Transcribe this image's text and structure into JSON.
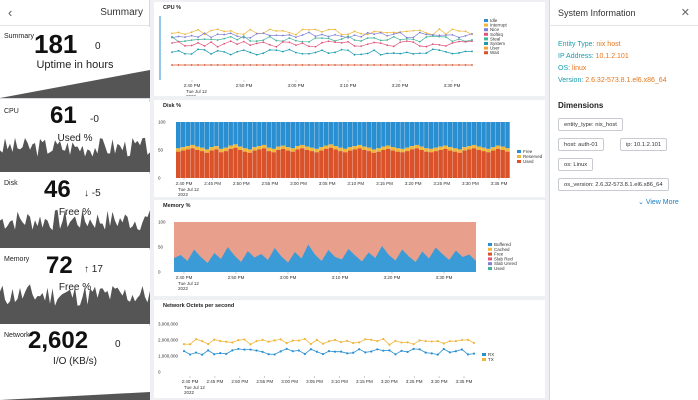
{
  "left": {
    "title": "Summary",
    "back_icon": "chevron-left-icon",
    "metrics": {
      "summary": {
        "label": "Summary",
        "value": "181",
        "delta": "0",
        "sub": "Uptime in hours"
      },
      "cpu": {
        "label": "CPU",
        "value": "61",
        "delta": "-0",
        "sub": "Used %"
      },
      "disk": {
        "label": "Disk",
        "value": "46",
        "delta": "↓ -5",
        "sub": "Free %"
      },
      "memory": {
        "label": "Memory",
        "value": "72",
        "delta": "↑ 17",
        "sub": "Free %"
      },
      "network": {
        "label": "Network",
        "value": "2,602",
        "delta": "0",
        "sub": "I/O (KB/s)"
      }
    }
  },
  "center": {
    "x_tick_labels": [
      "2:40 PM",
      "2:45 PM",
      "2:50 PM",
      "2:55 PM",
      "3:00 PM",
      "3:05 PM",
      "3:10 PM",
      "3:15 PM",
      "3:20 PM",
      "3:25 PM",
      "3:30 PM",
      "3:35 PM"
    ],
    "x_date_line1": "Tue Jul 12",
    "x_date_line2": "2022"
  },
  "chart_data": [
    {
      "type": "line",
      "title": "CPU %",
      "x_labels": [
        "2:40 PM",
        "2:50 PM",
        "3:00 PM",
        "3:10 PM",
        "3:20 PM",
        "3:30 PM"
      ],
      "series": [
        {
          "name": "Idle",
          "color": "#2a8fd1"
        },
        {
          "name": "Interrupt",
          "color": "#f0b63c"
        },
        {
          "name": "Nice",
          "color": "#7f7fd5"
        },
        {
          "name": "Softirq",
          "color": "#e0557a"
        },
        {
          "name": "Steal",
          "color": "#43b39b"
        },
        {
          "name": "System",
          "color": "#1a9cb0"
        },
        {
          "name": "User",
          "color": "#f7a23b"
        },
        {
          "name": "Wait",
          "color": "#d9522a"
        }
      ]
    },
    {
      "type": "bar",
      "title": "Disk %",
      "ylim": [
        0,
        100
      ],
      "y_ticks": [
        "100",
        "50",
        "0"
      ],
      "x_labels": [
        "2:40 PM",
        "2:45 PM",
        "2:50 PM",
        "2:55 PM",
        "3:00 PM",
        "3:05 PM",
        "3:10 PM",
        "3:15 PM",
        "3:20 PM",
        "3:25 PM",
        "3:30 PM",
        "3:35 PM"
      ],
      "series": [
        {
          "name": "Free",
          "color": "#2a8fd1"
        },
        {
          "name": "Reserved",
          "color": "#f0b63c"
        },
        {
          "name": "Used",
          "color": "#d9522a"
        }
      ],
      "approx_used": [
        47,
        49,
        51,
        53,
        50,
        48,
        45,
        49,
        51,
        46,
        48,
        52,
        54,
        50,
        47,
        45,
        49,
        51,
        53,
        48,
        46,
        50,
        52,
        49,
        47,
        51,
        53,
        50,
        48,
        46,
        49,
        52,
        54,
        51,
        48,
        46,
        49,
        51,
        53,
        50,
        48,
        45,
        47,
        50,
        52,
        49,
        47,
        46,
        48,
        51,
        53,
        50,
        47,
        46,
        48,
        50,
        52,
        49,
        47,
        45,
        49,
        51,
        53,
        50,
        48,
        46,
        49,
        52,
        50,
        47
      ],
      "approx_reserved": 6
    },
    {
      "type": "area",
      "title": "Memory %",
      "ylim": [
        0,
        100
      ],
      "y_ticks": [
        "100",
        "50",
        "0"
      ],
      "x_labels": [
        "2:40 PM",
        "2:50 PM",
        "3:00 PM",
        "3:10 PM",
        "3:20 PM",
        "3:30 PM"
      ],
      "series": [
        {
          "name": "Buffered",
          "color": "#2a8fd1"
        },
        {
          "name": "Cached",
          "color": "#f0b63c"
        },
        {
          "name": "Free",
          "color": "#d9522a"
        },
        {
          "name": "Slab Recl",
          "color": "#e0557a"
        },
        {
          "name": "Slab Unrecl",
          "color": "#7f7fd5"
        },
        {
          "name": "Used",
          "color": "#43b39b"
        }
      ],
      "approx_used": [
        28,
        34,
        22,
        45,
        30,
        18,
        38,
        26,
        50,
        33,
        20,
        42,
        29,
        36,
        24,
        48,
        31,
        19,
        40,
        27,
        55,
        35,
        22,
        44,
        30,
        25,
        46,
        33,
        21,
        39,
        28,
        52,
        34,
        23,
        45,
        31,
        20,
        41,
        27,
        49,
        36,
        24,
        43,
        30,
        35,
        22
      ]
    },
    {
      "type": "line",
      "title": "Network Octets per second",
      "y_ticks": [
        "3,000,000",
        "2,000,000",
        "1,000,000",
        "0"
      ],
      "ylim": [
        0,
        3000000
      ],
      "x_labels": [
        "2:40 PM",
        "2:45 PM",
        "2:50 PM",
        "2:55 PM",
        "3:00 PM",
        "3:05 PM",
        "3:10 PM",
        "3:15 PM",
        "3:20 PM",
        "3:25 PM",
        "3:30 PM",
        "3:35 PM"
      ],
      "series": [
        {
          "name": "RX",
          "color": "#2a8fd1"
        },
        {
          "name": "TX",
          "color": "#f0b63c"
        }
      ]
    }
  ],
  "right": {
    "title": "System Information",
    "close_icon": "close-icon",
    "info": [
      {
        "key": "Entity Type:",
        "value": "nix host"
      },
      {
        "key": "IP Address:",
        "value": "10.1.2.101"
      },
      {
        "key": "OS:",
        "value": "linux"
      },
      {
        "key": "Version:",
        "value": "2.6.32-573.8.1.el6.x86_64"
      }
    ],
    "dimensions_title": "Dimensions",
    "chips": [
      "entity_type: nix_host",
      "host: auth-01",
      "ip: 10.1.2.101",
      "os: Linux",
      "os_version: 2.6.32-573.8.1.el6.x86_64"
    ],
    "view_more": "View More"
  }
}
